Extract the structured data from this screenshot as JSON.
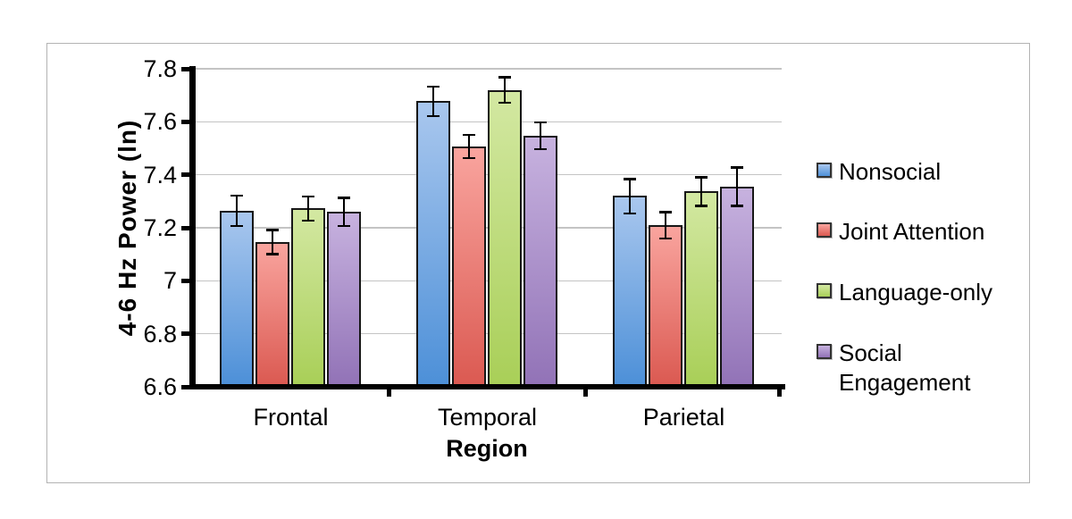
{
  "chart_data": {
    "type": "bar",
    "title": "",
    "xlabel": "Region",
    "ylabel": "4-6 Hz Power (ln)",
    "categories": [
      "Frontal",
      "Temporal",
      "Parietal"
    ],
    "series": [
      {
        "name": "Nonsocial",
        "color_top": "#A9C7EE",
        "color_bottom": "#4D90D8",
        "values": [
          7.265,
          7.678,
          7.32
        ],
        "errors": [
          0.058,
          0.055,
          0.065
        ]
      },
      {
        "name": "Joint Attention",
        "color_top": "#F9A49E",
        "color_bottom": "#DB5A52",
        "values": [
          7.147,
          7.508,
          7.21
        ],
        "errors": [
          0.046,
          0.044,
          0.049
        ]
      },
      {
        "name": "Language-only",
        "color_top": "#D3E8A2",
        "color_bottom": "#A9CF58",
        "values": [
          7.273,
          7.72,
          7.338
        ],
        "errors": [
          0.046,
          0.048,
          0.054
        ]
      },
      {
        "name": "Social Engagement",
        "color_top": "#C7B2DF",
        "color_bottom": "#9273B7",
        "values": [
          7.26,
          7.548,
          7.356
        ],
        "errors": [
          0.053,
          0.05,
          0.072
        ]
      }
    ],
    "ylim": [
      6.6,
      7.8
    ],
    "ytick_step": 0.2,
    "ytick_labels": [
      "7.8",
      "7.6",
      "7.4",
      "7.2",
      "7",
      "6.8",
      "6.6"
    ],
    "grid": true,
    "legend_position": "right",
    "error_bars": true
  },
  "legend": {
    "items": [
      {
        "lines": [
          "Nonsocial"
        ]
      },
      {
        "lines": [
          "Joint Attention"
        ]
      },
      {
        "lines": [
          "Language-only"
        ]
      },
      {
        "lines": [
          "Social",
          "Engagement"
        ]
      }
    ]
  },
  "colors": {
    "grid": "#c4c4c4",
    "axis": "#000000",
    "frame_border": "#b3b3b3",
    "bar_border": "#171717",
    "error_bar": "#000000",
    "text": "#000000"
  }
}
